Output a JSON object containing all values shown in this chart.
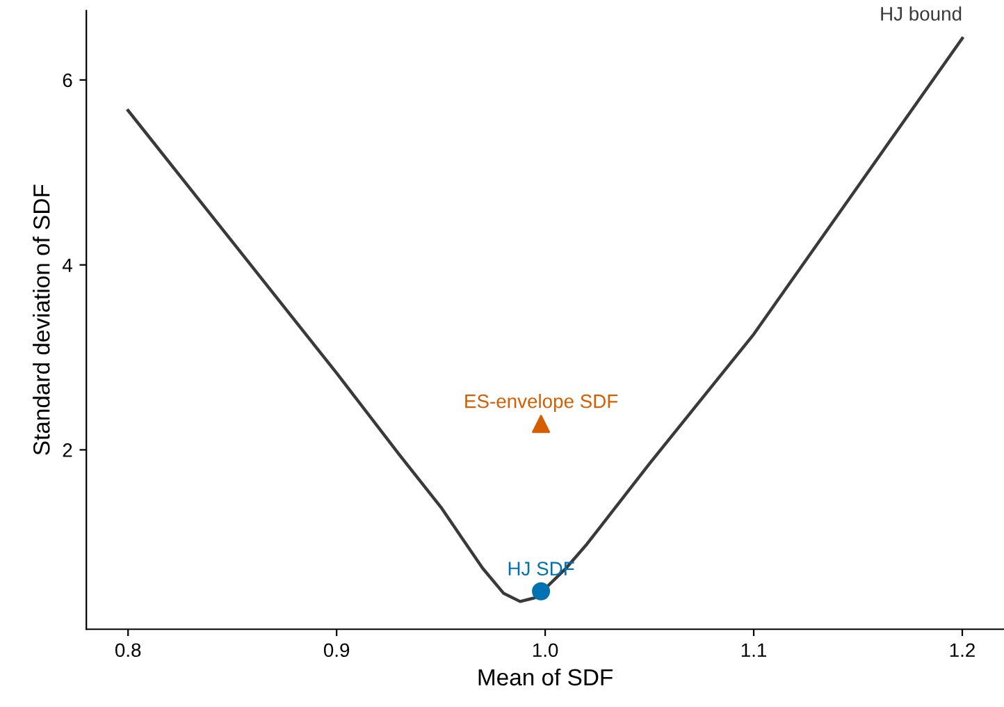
{
  "chart_data": {
    "type": "line",
    "xlabel": "Mean of SDF",
    "ylabel": "Standard deviation of SDF",
    "xlim": [
      0.78,
      1.22
    ],
    "ylim": [
      0.06,
      6.75
    ],
    "xticks": [
      0.8,
      0.9,
      {
        "value": 1,
        "label": "1.0"
      },
      1.1,
      1.2
    ],
    "yticks": [
      2,
      4,
      6
    ],
    "grid": false,
    "legend": false,
    "series": [
      {
        "name": "HJ bound",
        "color": "#3a3a3a",
        "marker": "none",
        "x": [
          0.8,
          0.85,
          0.9,
          0.93,
          0.95,
          0.96,
          0.97,
          0.98,
          0.988,
          0.995,
          1.0,
          1.01,
          1.02,
          1.05,
          1.1,
          1.15,
          1.2
        ],
        "values": [
          5.67,
          4.25,
          2.83,
          1.95,
          1.38,
          1.05,
          0.72,
          0.45,
          0.36,
          0.4,
          0.5,
          0.72,
          0.98,
          1.85,
          3.25,
          4.85,
          6.45
        ]
      },
      {
        "name": "ES-envelope SDF",
        "type": "scatter",
        "color": "#d55e00",
        "marker": "triangle",
        "x": [
          0.998
        ],
        "values": [
          2.28
        ]
      },
      {
        "name": "HJ SDF",
        "type": "scatter",
        "color": "#0072b2",
        "marker": "circle",
        "x": [
          0.998
        ],
        "values": [
          0.47
        ]
      }
    ]
  }
}
